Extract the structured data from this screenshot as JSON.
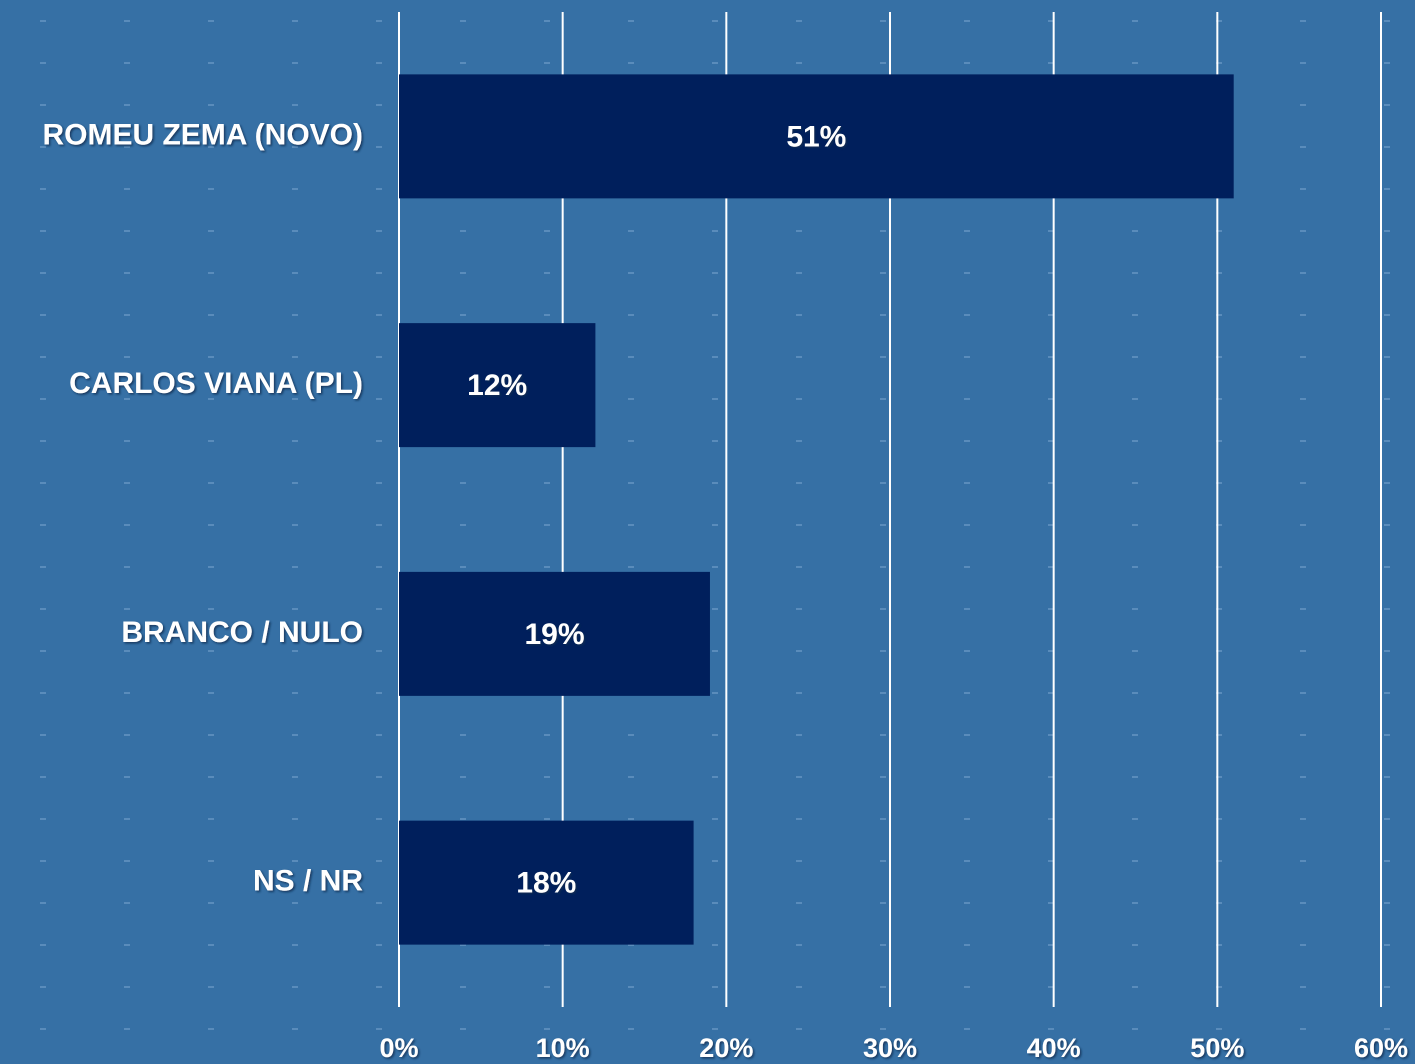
{
  "chart_data": {
    "type": "bar",
    "orientation": "horizontal",
    "categories": [
      "ROMEU ZEMA (NOVO)",
      "CARLOS VIANA (PL)",
      "BRANCO / NULO",
      "NS / NR"
    ],
    "values": [
      51,
      12,
      19,
      18
    ],
    "value_labels": [
      "51%",
      "12%",
      "19%",
      "18%"
    ],
    "color": "#001f5c",
    "xlim": [
      0,
      60
    ],
    "xticks": [
      {
        "value": 0,
        "label": "0%"
      },
      {
        "value": 10,
        "label": "10%"
      },
      {
        "value": 20,
        "label": "20%"
      },
      {
        "value": 30,
        "label": "30%"
      },
      {
        "value": 40,
        "label": "40%"
      },
      {
        "value": 50,
        "label": "50%"
      },
      {
        "value": 60,
        "label": "60%"
      }
    ],
    "grid": true
  }
}
